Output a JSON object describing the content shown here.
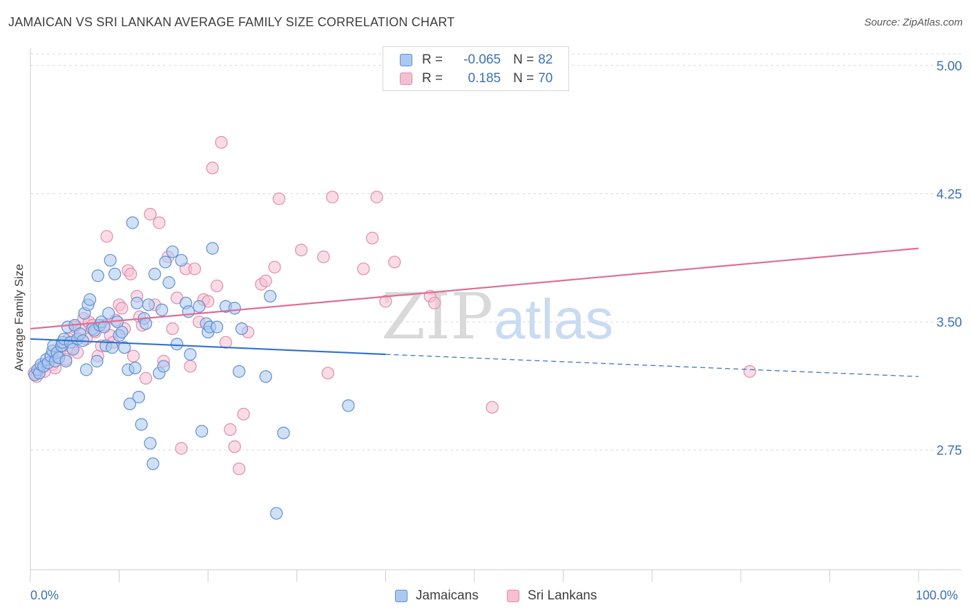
{
  "header": {
    "title": "JAMAICAN VS SRI LANKAN AVERAGE FAMILY SIZE CORRELATION CHART",
    "source": "Source: ZipAtlas.com"
  },
  "legend": {
    "rows": [
      {
        "r_label": "R =",
        "r_value": "-0.065",
        "n_label": "N =",
        "n_value": "82"
      },
      {
        "r_label": "R =",
        "r_value": "0.185",
        "n_label": "N =",
        "n_value": "70"
      }
    ]
  },
  "bottom_legend": {
    "series1": "Jamaicans",
    "series2": "Sri Lankans"
  },
  "x_axis_labels": {
    "left": "0.0%",
    "right": "100.0%"
  },
  "watermark": {
    "part1": "ZIP",
    "part2": "atlas"
  },
  "colors": {
    "blue_fill": "#aac8f0",
    "blue_stroke": "#5b8fd6",
    "blue_line": "#2e6fcf",
    "pink_fill": "#f6c0d2",
    "pink_stroke": "#e68aa8",
    "pink_line": "#e06b94",
    "grid": "#dadada",
    "axis_text": "#3572c6"
  },
  "chart_data": {
    "type": "scatter",
    "title": "JAMAICAN VS SRI LANKAN AVERAGE FAMILY SIZE CORRELATION CHART",
    "xlabel": "",
    "ylabel": "Average Family Size",
    "xlim": [
      0,
      100
    ],
    "ylim": [
      2.05,
      5.1
    ],
    "y_ticks": [
      2.75,
      3.5,
      4.25,
      5.0
    ],
    "y_tick_labels": [
      "2.75",
      "3.50",
      "4.25",
      "5.00"
    ],
    "x_tick_labels": [
      "0.0%",
      "100.0%"
    ],
    "grid": true,
    "legend_placement": "top-center",
    "series": [
      {
        "name": "Jamaicans",
        "r": -0.065,
        "n": 82,
        "trend": {
          "x0": 0,
          "y0": 3.4,
          "x1": 40,
          "y1": 3.31,
          "dashed_to_x": 100,
          "dashed_y1": 3.18
        },
        "points": [
          [
            0.5,
            3.19
          ],
          [
            0.8,
            3.22
          ],
          [
            1.0,
            3.2
          ],
          [
            1.2,
            3.25
          ],
          [
            1.5,
            3.24
          ],
          [
            1.8,
            3.28
          ],
          [
            2.0,
            3.26
          ],
          [
            2.3,
            3.3
          ],
          [
            2.5,
            3.33
          ],
          [
            2.6,
            3.36
          ],
          [
            2.8,
            3.27
          ],
          [
            3.0,
            3.32
          ],
          [
            3.2,
            3.29
          ],
          [
            3.5,
            3.36
          ],
          [
            3.6,
            3.38
          ],
          [
            3.8,
            3.4
          ],
          [
            4.0,
            3.27
          ],
          [
            4.2,
            3.47
          ],
          [
            4.5,
            3.38
          ],
          [
            4.8,
            3.34
          ],
          [
            5.0,
            3.48
          ],
          [
            5.3,
            3.4
          ],
          [
            5.6,
            3.43
          ],
          [
            5.9,
            3.39
          ],
          [
            6.1,
            3.55
          ],
          [
            6.3,
            3.22
          ],
          [
            6.5,
            3.6
          ],
          [
            6.7,
            3.63
          ],
          [
            7.0,
            3.46
          ],
          [
            7.2,
            3.45
          ],
          [
            7.5,
            3.27
          ],
          [
            7.6,
            3.77
          ],
          [
            7.8,
            3.48
          ],
          [
            8.0,
            3.5
          ],
          [
            8.3,
            3.47
          ],
          [
            8.5,
            3.36
          ],
          [
            8.8,
            3.55
          ],
          [
            9.0,
            3.86
          ],
          [
            9.2,
            3.35
          ],
          [
            9.5,
            3.78
          ],
          [
            9.8,
            3.5
          ],
          [
            10.0,
            3.42
          ],
          [
            10.3,
            3.44
          ],
          [
            10.6,
            3.35
          ],
          [
            11.0,
            3.22
          ],
          [
            11.2,
            3.02
          ],
          [
            11.5,
            4.08
          ],
          [
            11.8,
            3.23
          ],
          [
            12.0,
            3.61
          ],
          [
            12.2,
            3.06
          ],
          [
            12.5,
            2.9
          ],
          [
            12.8,
            3.52
          ],
          [
            13.0,
            3.49
          ],
          [
            13.3,
            3.6
          ],
          [
            13.5,
            2.79
          ],
          [
            13.8,
            2.67
          ],
          [
            14.0,
            3.78
          ],
          [
            14.5,
            3.2
          ],
          [
            14.8,
            3.57
          ],
          [
            15.0,
            3.24
          ],
          [
            15.2,
            3.85
          ],
          [
            15.6,
            3.73
          ],
          [
            16.0,
            3.91
          ],
          [
            16.5,
            3.37
          ],
          [
            17.0,
            3.86
          ],
          [
            17.5,
            3.61
          ],
          [
            17.8,
            3.56
          ],
          [
            18.0,
            3.31
          ],
          [
            19.0,
            3.59
          ],
          [
            19.3,
            2.86
          ],
          [
            19.8,
            3.49
          ],
          [
            20.0,
            3.44
          ],
          [
            20.2,
            3.47
          ],
          [
            20.5,
            3.93
          ],
          [
            21.0,
            3.47
          ],
          [
            22.0,
            3.59
          ],
          [
            23.0,
            3.58
          ],
          [
            23.5,
            3.21
          ],
          [
            23.8,
            3.46
          ],
          [
            26.5,
            3.18
          ],
          [
            27.0,
            3.65
          ],
          [
            28.5,
            2.85
          ],
          [
            27.7,
            2.38
          ],
          [
            35.8,
            3.01
          ]
        ]
      },
      {
        "name": "Sri Lankans",
        "r": 0.185,
        "n": 70,
        "trend": {
          "x0": 0,
          "y0": 3.46,
          "x1": 100,
          "y1": 3.93
        },
        "points": [
          [
            0.4,
            3.2
          ],
          [
            0.7,
            3.18
          ],
          [
            1.0,
            3.22
          ],
          [
            1.3,
            3.24
          ],
          [
            1.6,
            3.21
          ],
          [
            2.0,
            3.26
          ],
          [
            2.2,
            3.28
          ],
          [
            2.5,
            3.25
          ],
          [
            2.8,
            3.23
          ],
          [
            3.0,
            3.3
          ],
          [
            3.3,
            3.33
          ],
          [
            3.6,
            3.36
          ],
          [
            4.0,
            3.28
          ],
          [
            4.3,
            3.4
          ],
          [
            4.6,
            3.35
          ],
          [
            5.0,
            3.47
          ],
          [
            5.3,
            3.32
          ],
          [
            5.6,
            3.45
          ],
          [
            6.0,
            3.52
          ],
          [
            6.3,
            3.4
          ],
          [
            6.6,
            3.5
          ],
          [
            7.0,
            3.48
          ],
          [
            7.3,
            3.44
          ],
          [
            7.6,
            3.3
          ],
          [
            8.0,
            3.36
          ],
          [
            8.3,
            3.48
          ],
          [
            8.6,
            4.0
          ],
          [
            9.0,
            3.42
          ],
          [
            9.3,
            3.38
          ],
          [
            9.6,
            3.51
          ],
          [
            10.0,
            3.6
          ],
          [
            10.3,
            3.58
          ],
          [
            10.6,
            3.46
          ],
          [
            11.0,
            3.8
          ],
          [
            11.3,
            3.78
          ],
          [
            11.6,
            3.3
          ],
          [
            12.0,
            3.65
          ],
          [
            12.3,
            3.53
          ],
          [
            12.6,
            3.48
          ],
          [
            13.0,
            3.17
          ],
          [
            13.5,
            4.13
          ],
          [
            14.0,
            3.6
          ],
          [
            14.5,
            4.08
          ],
          [
            15.0,
            3.27
          ],
          [
            15.5,
            3.88
          ],
          [
            16.0,
            3.46
          ],
          [
            16.5,
            3.64
          ],
          [
            17.0,
            2.76
          ],
          [
            17.5,
            3.81
          ],
          [
            18.0,
            3.24
          ],
          [
            18.5,
            3.81
          ],
          [
            19.0,
            3.5
          ],
          [
            19.5,
            3.63
          ],
          [
            20.0,
            3.62
          ],
          [
            20.5,
            4.4
          ],
          [
            21.0,
            3.71
          ],
          [
            21.5,
            4.55
          ],
          [
            22.0,
            3.38
          ],
          [
            22.5,
            2.87
          ],
          [
            23.0,
            2.77
          ],
          [
            23.5,
            2.64
          ],
          [
            24.0,
            2.96
          ],
          [
            24.5,
            3.44
          ],
          [
            26.0,
            3.72
          ],
          [
            26.5,
            3.74
          ],
          [
            27.5,
            3.82
          ],
          [
            28.0,
            4.22
          ],
          [
            30.5,
            3.92
          ],
          [
            33.0,
            3.88
          ],
          [
            34.0,
            4.23
          ]
        ],
        "extra_points": [
          [
            33.5,
            3.2
          ],
          [
            37.5,
            3.81
          ],
          [
            38.5,
            3.99
          ],
          [
            39.0,
            4.23
          ],
          [
            40.0,
            3.62
          ],
          [
            41.0,
            3.85
          ],
          [
            45.0,
            3.65
          ],
          [
            45.5,
            3.61
          ],
          [
            52.0,
            3.0
          ],
          [
            81.0,
            3.21
          ]
        ]
      }
    ]
  }
}
